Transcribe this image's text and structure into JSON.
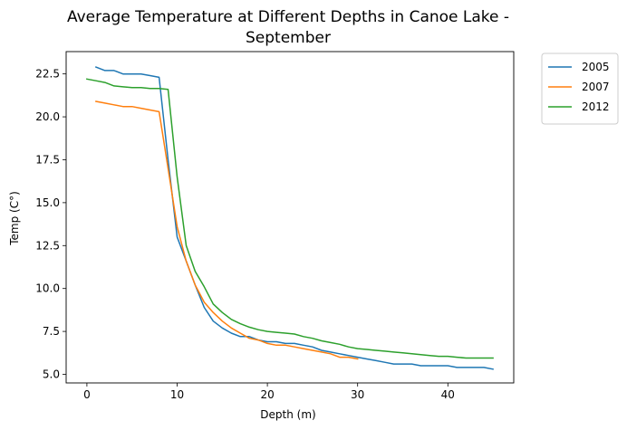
{
  "chart_data": {
    "type": "line",
    "title_line1": "Average Temperature at Different Depths in Canoe Lake -",
    "title_line2": "September",
    "xlabel": "Depth (m)",
    "ylabel": "Temp (C°)",
    "xlim": [
      -2.3,
      47.3
    ],
    "ylim": [
      4.5,
      23.8
    ],
    "xticks": [
      0,
      10,
      20,
      30,
      40
    ],
    "xtick_labels": [
      "0",
      "10",
      "20",
      "30",
      "40"
    ],
    "yticks": [
      5.0,
      7.5,
      10.0,
      12.5,
      15.0,
      17.5,
      20.0,
      22.5
    ],
    "ytick_labels": [
      "5.0",
      "7.5",
      "10.0",
      "12.5",
      "15.0",
      "17.5",
      "20.0",
      "22.5"
    ],
    "grid": false,
    "legend_position": "outside-top-right",
    "series": [
      {
        "name": "2005",
        "color": "#1f77b4",
        "x": [
          1,
          2,
          3,
          4,
          5,
          6,
          7,
          8,
          9,
          10,
          11,
          12,
          13,
          14,
          15,
          16,
          17,
          18,
          19,
          20,
          21,
          22,
          23,
          24,
          25,
          26,
          27,
          28,
          29,
          30,
          31,
          32,
          33,
          34,
          35,
          36,
          37,
          38,
          39,
          40,
          41,
          42,
          43,
          44,
          45
        ],
        "y": [
          22.9,
          22.7,
          22.7,
          22.5,
          22.5,
          22.5,
          22.4,
          22.3,
          17.5,
          13.0,
          11.6,
          10.2,
          8.9,
          8.1,
          7.7,
          7.4,
          7.2,
          7.2,
          7.0,
          6.9,
          6.9,
          6.8,
          6.8,
          6.7,
          6.6,
          6.4,
          6.3,
          6.2,
          6.1,
          6.0,
          5.9,
          5.8,
          5.7,
          5.6,
          5.6,
          5.6,
          5.5,
          5.5,
          5.5,
          5.5,
          5.4,
          5.4,
          5.4,
          5.4,
          5.3
        ]
      },
      {
        "name": "2007",
        "color": "#ff7f0e",
        "x": [
          1,
          2,
          3,
          4,
          5,
          6,
          7,
          8,
          9,
          10,
          11,
          12,
          13,
          14,
          15,
          16,
          17,
          18,
          19,
          20,
          21,
          22,
          23,
          24,
          25,
          26,
          27,
          28,
          29,
          30
        ],
        "y": [
          20.9,
          20.8,
          20.7,
          20.6,
          20.6,
          20.5,
          20.4,
          20.3,
          17.0,
          13.6,
          11.6,
          10.2,
          9.2,
          8.6,
          8.1,
          7.7,
          7.4,
          7.1,
          7.0,
          6.8,
          6.7,
          6.7,
          6.6,
          6.5,
          6.4,
          6.3,
          6.2,
          6.0,
          6.0,
          5.9
        ]
      },
      {
        "name": "2012",
        "color": "#2ca02c",
        "x": [
          0,
          1,
          2,
          3,
          4,
          5,
          6,
          7,
          8,
          9,
          10,
          11,
          12,
          13,
          14,
          15,
          16,
          17,
          18,
          19,
          20,
          21,
          22,
          23,
          24,
          25,
          26,
          27,
          28,
          29,
          30,
          31,
          32,
          33,
          34,
          35,
          36,
          37,
          38,
          39,
          40,
          41,
          42,
          43,
          44,
          45
        ],
        "y": [
          22.2,
          22.1,
          22.0,
          21.8,
          21.75,
          21.7,
          21.7,
          21.65,
          21.65,
          21.6,
          16.5,
          12.5,
          11.0,
          10.1,
          9.1,
          8.6,
          8.2,
          7.95,
          7.75,
          7.6,
          7.5,
          7.45,
          7.4,
          7.35,
          7.2,
          7.1,
          6.95,
          6.85,
          6.75,
          6.6,
          6.5,
          6.45,
          6.4,
          6.35,
          6.3,
          6.25,
          6.2,
          6.15,
          6.1,
          6.05,
          6.05,
          6.0,
          5.95,
          5.95,
          5.95,
          5.95
        ]
      }
    ]
  }
}
